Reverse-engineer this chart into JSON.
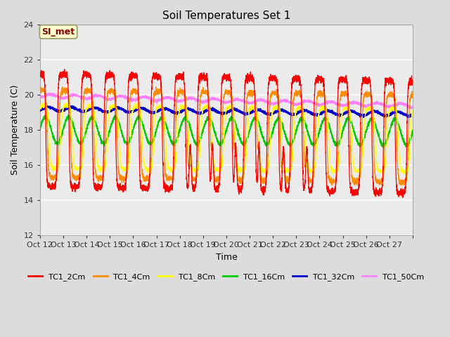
{
  "title": "Soil Temperatures Set 1",
  "xlabel": "Time",
  "ylabel": "Soil Temperature (C)",
  "ylim": [
    12,
    24
  ],
  "yticks": [
    12,
    14,
    16,
    18,
    20,
    22,
    24
  ],
  "x_tick_labels": [
    "Oct 12",
    "Oct 13",
    "Oct 14",
    "Oct 15",
    "Oct 16",
    "Oct 17",
    "Oct 18",
    "Oct 19",
    "Oct 20",
    "Oct 21",
    "Oct 22",
    "Oct 23",
    "Oct 24",
    "Oct 25",
    "Oct 26",
    "Oct 27"
  ],
  "annotation_text": "SI_met",
  "annotation_color": "#8B0000",
  "annotation_bg": "#FFFFCC",
  "annotation_border": "#999966",
  "series_colors": {
    "TC1_2Cm": "#FF0000",
    "TC1_4Cm": "#FF8C00",
    "TC1_8Cm": "#FFFF00",
    "TC1_16Cm": "#00CC00",
    "TC1_32Cm": "#0000CC",
    "TC1_50Cm": "#FF80FF"
  },
  "background_color": "#DCDCDC",
  "plot_bg": "#EBEBEB",
  "grid_color": "#FFFFFF",
  "days": 16,
  "n_points": 4800
}
